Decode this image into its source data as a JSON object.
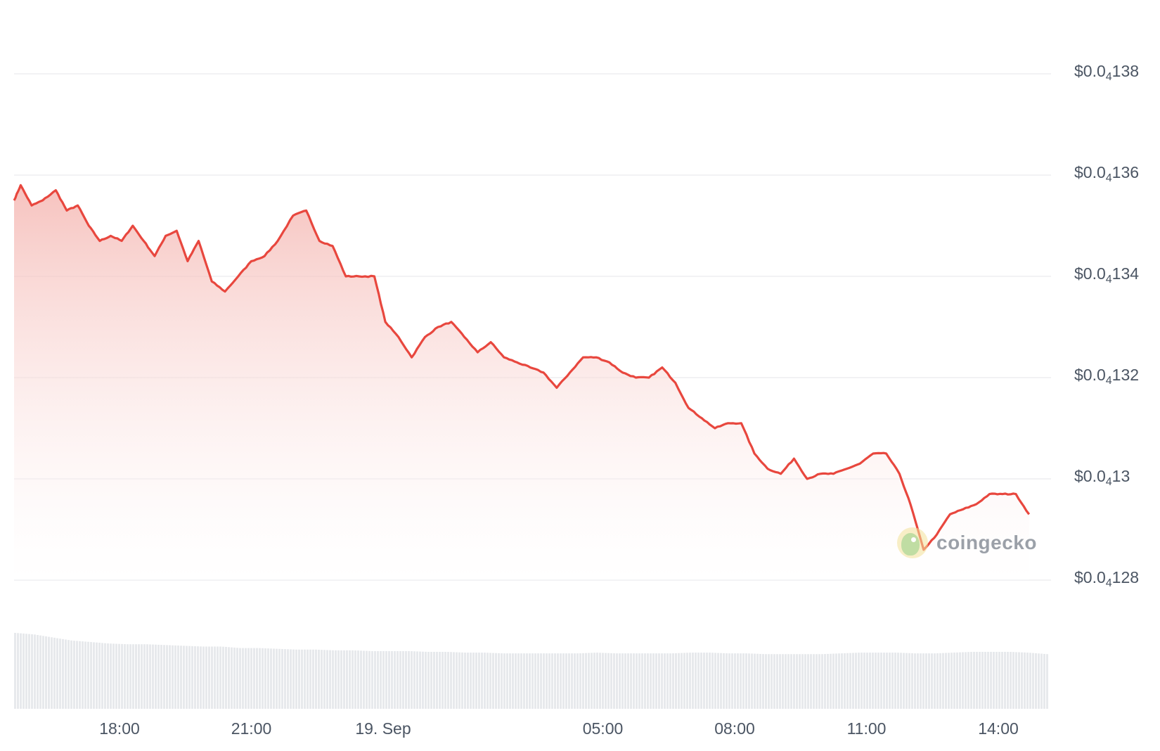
{
  "chart_data": {
    "type": "area",
    "y_ticks": [
      {
        "value": 1.38e-05,
        "prefix": "$0.0",
        "sub": "4",
        "suffix": "138"
      },
      {
        "value": 1.36e-05,
        "prefix": "$0.0",
        "sub": "4",
        "suffix": "136"
      },
      {
        "value": 1.34e-05,
        "prefix": "$0.0",
        "sub": "4",
        "suffix": "134"
      },
      {
        "value": 1.32e-05,
        "prefix": "$0.0",
        "sub": "4",
        "suffix": "132"
      },
      {
        "value": 1.3e-05,
        "prefix": "$0.0",
        "sub": "4",
        "suffix": "13"
      },
      {
        "value": 1.28e-05,
        "prefix": "$0.0",
        "sub": "4",
        "suffix": "128"
      }
    ],
    "ylim": [
      1.28e-05,
      1.38e-05
    ],
    "xlim_hours": [
      -5.4,
      18.2
    ],
    "x_ticks": [
      {
        "hour": -3,
        "label": "18:00"
      },
      {
        "hour": 0,
        "label": "21:00"
      },
      {
        "hour": 3,
        "label": "19. Sep"
      },
      {
        "hour": 8,
        "label": "05:00"
      },
      {
        "hour": 11,
        "label": "08:00"
      },
      {
        "hour": 14,
        "label": "11:00"
      },
      {
        "hour": 17,
        "label": "14:00"
      }
    ],
    "price_keypoints_hours": [
      [
        -5.4,
        1.355e-05
      ],
      [
        -5.25,
        1.358e-05
      ],
      [
        -5.0,
        1.354e-05
      ],
      [
        -4.75,
        1.355e-05
      ],
      [
        -4.45,
        1.357e-05
      ],
      [
        -4.2,
        1.353e-05
      ],
      [
        -3.95,
        1.354e-05
      ],
      [
        -3.7,
        1.35e-05
      ],
      [
        -3.45,
        1.347e-05
      ],
      [
        -3.2,
        1.348e-05
      ],
      [
        -2.95,
        1.347e-05
      ],
      [
        -2.7,
        1.35e-05
      ],
      [
        -2.45,
        1.347e-05
      ],
      [
        -2.2,
        1.344e-05
      ],
      [
        -1.95,
        1.348e-05
      ],
      [
        -1.7,
        1.349e-05
      ],
      [
        -1.45,
        1.343e-05
      ],
      [
        -1.2,
        1.347e-05
      ],
      [
        -0.9,
        1.339e-05
      ],
      [
        -0.6,
        1.337e-05
      ],
      [
        -0.3,
        1.34e-05
      ],
      [
        0.0,
        1.343e-05
      ],
      [
        0.3,
        1.344e-05
      ],
      [
        0.6,
        1.347e-05
      ],
      [
        0.95,
        1.352e-05
      ],
      [
        1.25,
        1.353e-05
      ],
      [
        1.55,
        1.347e-05
      ],
      [
        1.85,
        1.346e-05
      ],
      [
        2.15,
        1.34e-05
      ],
      [
        2.45,
        1.34e-05
      ],
      [
        2.8,
        1.34e-05
      ],
      [
        3.05,
        1.331e-05
      ],
      [
        3.35,
        1.328e-05
      ],
      [
        3.65,
        1.324e-05
      ],
      [
        3.95,
        1.328e-05
      ],
      [
        4.25,
        1.33e-05
      ],
      [
        4.55,
        1.331e-05
      ],
      [
        4.85,
        1.328e-05
      ],
      [
        5.15,
        1.325e-05
      ],
      [
        5.45,
        1.327e-05
      ],
      [
        5.75,
        1.324e-05
      ],
      [
        6.05,
        1.323e-05
      ],
      [
        6.35,
        1.322e-05
      ],
      [
        6.65,
        1.321e-05
      ],
      [
        6.95,
        1.318e-05
      ],
      [
        7.25,
        1.321e-05
      ],
      [
        7.55,
        1.324e-05
      ],
      [
        7.85,
        1.324e-05
      ],
      [
        8.15,
        1.323e-05
      ],
      [
        8.45,
        1.321e-05
      ],
      [
        8.75,
        1.32e-05
      ],
      [
        9.05,
        1.32e-05
      ],
      [
        9.35,
        1.322e-05
      ],
      [
        9.65,
        1.319e-05
      ],
      [
        9.95,
        1.314e-05
      ],
      [
        10.25,
        1.312e-05
      ],
      [
        10.55,
        1.31e-05
      ],
      [
        10.85,
        1.311e-05
      ],
      [
        11.15,
        1.311e-05
      ],
      [
        11.45,
        1.305e-05
      ],
      [
        11.75,
        1.302e-05
      ],
      [
        12.05,
        1.301e-05
      ],
      [
        12.35,
        1.304e-05
      ],
      [
        12.65,
        1.3e-05
      ],
      [
        12.95,
        1.301e-05
      ],
      [
        13.25,
        1.301e-05
      ],
      [
        13.55,
        1.302e-05
      ],
      [
        13.85,
        1.303e-05
      ],
      [
        14.15,
        1.305e-05
      ],
      [
        14.45,
        1.305e-05
      ],
      [
        14.75,
        1.301e-05
      ],
      [
        15.0,
        1.295e-05
      ],
      [
        15.3,
        1.286e-05
      ],
      [
        15.6,
        1.289e-05
      ],
      [
        15.9,
        1.293e-05
      ],
      [
        16.2,
        1.294e-05
      ],
      [
        16.5,
        1.295e-05
      ],
      [
        16.8,
        1.297e-05
      ],
      [
        17.1,
        1.297e-05
      ],
      [
        17.4,
        1.297e-05
      ],
      [
        17.7,
        1.293e-05
      ]
    ],
    "volume_relative": [
      1.0,
      0.98,
      0.94,
      0.9,
      0.88,
      0.86,
      0.85,
      0.85,
      0.84,
      0.83,
      0.82,
      0.82,
      0.8,
      0.8,
      0.79,
      0.78,
      0.78,
      0.77,
      0.77,
      0.76,
      0.76,
      0.76,
      0.75,
      0.75,
      0.74,
      0.74,
      0.73,
      0.73,
      0.73,
      0.73,
      0.73,
      0.74,
      0.73,
      0.73,
      0.73,
      0.73,
      0.74,
      0.74,
      0.73,
      0.73,
      0.72,
      0.72,
      0.72,
      0.72,
      0.73,
      0.74,
      0.74,
      0.74,
      0.73,
      0.73,
      0.74,
      0.75,
      0.75,
      0.75,
      0.74,
      0.72
    ],
    "colors": {
      "line": "#e8473e",
      "fill_top": "#f4b3ae",
      "fill_bottom": "#ffffff",
      "grid": "#e9ebee",
      "volume": "#e7e9ec"
    }
  },
  "watermark": {
    "text": "coingecko"
  }
}
